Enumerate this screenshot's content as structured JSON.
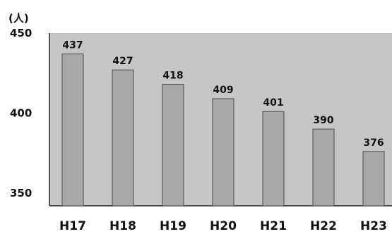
{
  "chart_data": {
    "type": "bar",
    "unit_label": "(人)",
    "categories": [
      "H17",
      "H18",
      "H19",
      "H20",
      "H21",
      "H22",
      "H23"
    ],
    "values": [
      437,
      427,
      418,
      409,
      401,
      390,
      376
    ],
    "ylim": [
      342,
      450
    ],
    "yticks": [
      450,
      400,
      350
    ],
    "ytick_labels": [
      "450",
      "400",
      "350"
    ],
    "data_labels": [
      "437",
      "427",
      "418",
      "409",
      "401",
      "390",
      "376"
    ],
    "colors": {
      "plot_background": "#c6c6c6",
      "bar_fill": "#a8a8a8",
      "bar_stroke": "#4a4a4a",
      "axis": "#222222",
      "text": "#111111"
    }
  }
}
